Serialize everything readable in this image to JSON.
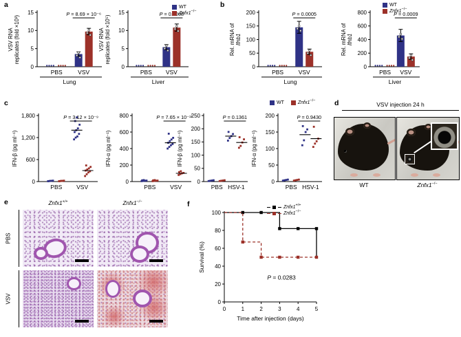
{
  "colors": {
    "wt": "#2f3286",
    "ko": "#9c3129",
    "survival_wt": "#000000"
  },
  "legend": {
    "wt_label": "WT",
    "ko_gene": "Znfx1",
    "ko_sup": "−/−"
  },
  "panel_a": {
    "label": "a",
    "charts": [
      {
        "ylabel1": "VSV RNA",
        "ylabel2": "replicates (fold ×10³)",
        "ylabel2_italic": false,
        "ymax": 15,
        "yticks": [
          "0",
          "5",
          "10",
          "15"
        ],
        "p": "P = 8.69 × 10⁻⁶",
        "groups": [
          "PBS",
          "VSV"
        ],
        "tissue": "Lung",
        "wt_values": [
          0,
          3.5
        ],
        "ko_values": [
          0,
          9.7
        ],
        "wt_err": [
          0,
          0.6
        ],
        "ko_err": [
          0,
          0.9
        ]
      },
      {
        "ylabel1": "VSV RNA",
        "ylabel2": "replicates (fold ×10⁵)",
        "ylabel2_italic": false,
        "ymax": 15,
        "yticks": [
          "0",
          "5",
          "10",
          "15"
        ],
        "p": "P = 0.0008",
        "groups": [
          "PBS",
          "VSV"
        ],
        "tissue": "Liver",
        "wt_values": [
          0,
          5.4
        ],
        "ko_values": [
          0,
          10.8
        ],
        "wt_err": [
          0,
          0.7
        ],
        "ko_err": [
          0,
          1.0
        ]
      }
    ]
  },
  "panel_b": {
    "label": "b",
    "charts": [
      {
        "ylabel1": "Rel. mRNA of",
        "ylabel2": "Ifnb1",
        "ylabel2_italic": true,
        "ymax": 200,
        "yticks": [
          "0",
          "50",
          "100",
          "150",
          "200"
        ],
        "p": "P = 0.0005",
        "groups": [
          "PBS",
          "VSV"
        ],
        "tissue": "Lung",
        "wt_values": [
          0,
          145
        ],
        "ko_values": [
          0,
          55
        ],
        "wt_err": [
          0,
          22
        ],
        "ko_err": [
          0,
          10
        ]
      },
      {
        "ylabel1": "Rel. mRNA of",
        "ylabel2": "Ifnb1",
        "ylabel2_italic": true,
        "ymax": 800,
        "yticks": [
          "0",
          "200",
          "400",
          "600",
          "800"
        ],
        "p": "P = 0.0009",
        "groups": [
          "PBS",
          "VSV"
        ],
        "tissue": "Liver",
        "wt_values": [
          0,
          460
        ],
        "ko_values": [
          0,
          150
        ],
        "wt_err": [
          0,
          90
        ],
        "ko_err": [
          0,
          40
        ]
      }
    ]
  },
  "panel_c": {
    "label": "c",
    "charts": [
      {
        "ylabel": "IFN-β (pg ml⁻¹)",
        "ymax": 1800,
        "yticks": [
          "0",
          "600",
          "1,200",
          "1,800"
        ],
        "p": "P = 3.12 × 10⁻⁹",
        "groups": [
          "PBS",
          "VSV"
        ],
        "wt_points": [
          [
            10,
            15,
            20,
            25,
            12,
            18
          ],
          [
            1150,
            1200,
            1230,
            1300,
            1350,
            1400,
            1450,
            1550,
            1650,
            1750
          ]
        ],
        "ko_points": [
          [
            10,
            15,
            20,
            25,
            12,
            18
          ],
          [
            150,
            200,
            250,
            280,
            300,
            330,
            360,
            400,
            440
          ]
        ],
        "wt_mean": 1400,
        "ko_mean": 300
      },
      {
        "ylabel": "IFN-α (pg ml⁻¹)",
        "ymax": 800,
        "yticks": [
          "0",
          "200",
          "400",
          "600",
          "800"
        ],
        "p": "P = 7.65 × 10⁻¹¹",
        "groups": [
          "PBS",
          "VSV"
        ],
        "wt_points": [
          [
            5,
            8,
            10,
            12,
            15,
            18
          ],
          [
            400,
            420,
            440,
            455,
            470,
            490,
            510,
            530,
            580
          ]
        ],
        "ko_points": [
          [
            5,
            8,
            10,
            12,
            15,
            18
          ],
          [
            80,
            90,
            100,
            105,
            115,
            125
          ]
        ],
        "wt_mean": 470,
        "ko_mean": 100
      },
      {
        "ylabel": "IFN-β (pg ml⁻¹)",
        "ymax": 250,
        "yticks": [
          "0",
          "50",
          "100",
          "150",
          "200",
          "250"
        ],
        "p": "P = 0.1361",
        "groups": [
          "PBS",
          "HSV-1"
        ],
        "wt_points": [
          [
            2,
            3,
            4,
            5
          ],
          [
            155,
            165,
            172,
            180,
            188
          ]
        ],
        "ko_points": [
          [
            2,
            3,
            4,
            5
          ],
          [
            128,
            135,
            148,
            160,
            168
          ]
        ],
        "wt_mean": 172,
        "ko_mean": 148
      },
      {
        "ylabel": "IFN-α (pg ml⁻¹)",
        "ymax": 200,
        "yticks": [
          "0",
          "50",
          "100",
          "150",
          "200"
        ],
        "p": "P = 0.9430",
        "groups": [
          "PBS",
          "HSV-1"
        ],
        "wt_points": [
          [
            3,
            4,
            5,
            6
          ],
          [
            110,
            125,
            150,
            158,
            168
          ]
        ],
        "ko_points": [
          [
            3,
            4,
            5,
            6
          ],
          [
            105,
            115,
            122,
            130,
            166
          ]
        ],
        "wt_mean": 142,
        "ko_mean": 130
      }
    ]
  },
  "panel_d": {
    "label": "d",
    "title": "VSV injection 24 h",
    "photo1_label": "WT",
    "photo2_gene": "Znfx1",
    "photo2_sup": "−/−"
  },
  "panel_e": {
    "label": "e",
    "col1_gene": "Znfx1",
    "col1_sup": "+/+",
    "col2_gene": "Znfx1",
    "col2_sup": "−/−",
    "row1": "PBS",
    "row2": "VSV"
  },
  "panel_f": {
    "label": "f",
    "ylabel": "Survival (%)",
    "xlabel": "Time after injection (days)",
    "yticks": [
      0,
      20,
      40,
      60,
      80,
      100
    ],
    "xticks": [
      0,
      1,
      2,
      3,
      4,
      5
    ],
    "p": "P = 0.0283",
    "series": [
      {
        "gene": "Znfx1",
        "sup": "+/+",
        "color": "#000000",
        "dashed": false,
        "steps": [
          [
            0,
            100
          ],
          [
            3,
            82
          ],
          [
            5,
            82
          ]
        ],
        "end_drop": 50,
        "markers": [
          [
            1,
            100
          ],
          [
            2,
            100
          ],
          [
            3,
            82
          ],
          [
            4,
            82
          ],
          [
            5,
            82
          ]
        ]
      },
      {
        "gene": "Znfx1",
        "sup": "−/−",
        "color": "#9c3129",
        "dashed": true,
        "steps": [
          [
            0,
            100
          ],
          [
            1,
            67
          ],
          [
            2,
            50
          ],
          [
            5,
            50
          ]
        ],
        "markers": [
          [
            1,
            67
          ],
          [
            2,
            50
          ],
          [
            3,
            50
          ],
          [
            4,
            50
          ],
          [
            5,
            50
          ]
        ]
      }
    ]
  }
}
